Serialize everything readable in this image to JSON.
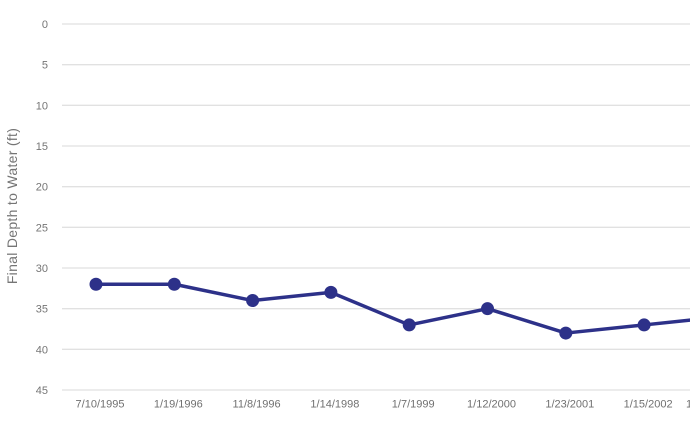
{
  "page": {
    "background_color": "#ffffff"
  },
  "chart_data": {
    "type": "line",
    "title": "",
    "xlabel": "",
    "ylabel": "Final Depth to Water (ft)",
    "categories": [
      "7/10/1995",
      "1/19/1996",
      "11/8/1996",
      "1/14/1998",
      "1/7/1999",
      "1/12/2000",
      "1/23/2001",
      "1/15/2002"
    ],
    "values": [
      32,
      32,
      34,
      33,
      37,
      35,
      38,
      37
    ],
    "y_ticks": [
      0,
      5,
      10,
      15,
      20,
      25,
      30,
      35,
      40,
      45
    ],
    "ylim": [
      0,
      45
    ],
    "y_axis_direction": "increases-downward-depth",
    "grid": "horizontal-only",
    "legend_position": "none",
    "marker_style": "filled-circle",
    "cropped_right_edge": {
      "line_continues_past_edge": true,
      "edge_value_estimate": 36.4,
      "next_point_value_estimate": 36,
      "partial_x_label": "1"
    },
    "colors": {
      "line": "#2d3189",
      "marker": "#2d3189",
      "gridline": "#e1e1e1",
      "y_tick_text": "#757575",
      "x_tick_text": "#707070",
      "axis_title_text": "#757575"
    }
  }
}
